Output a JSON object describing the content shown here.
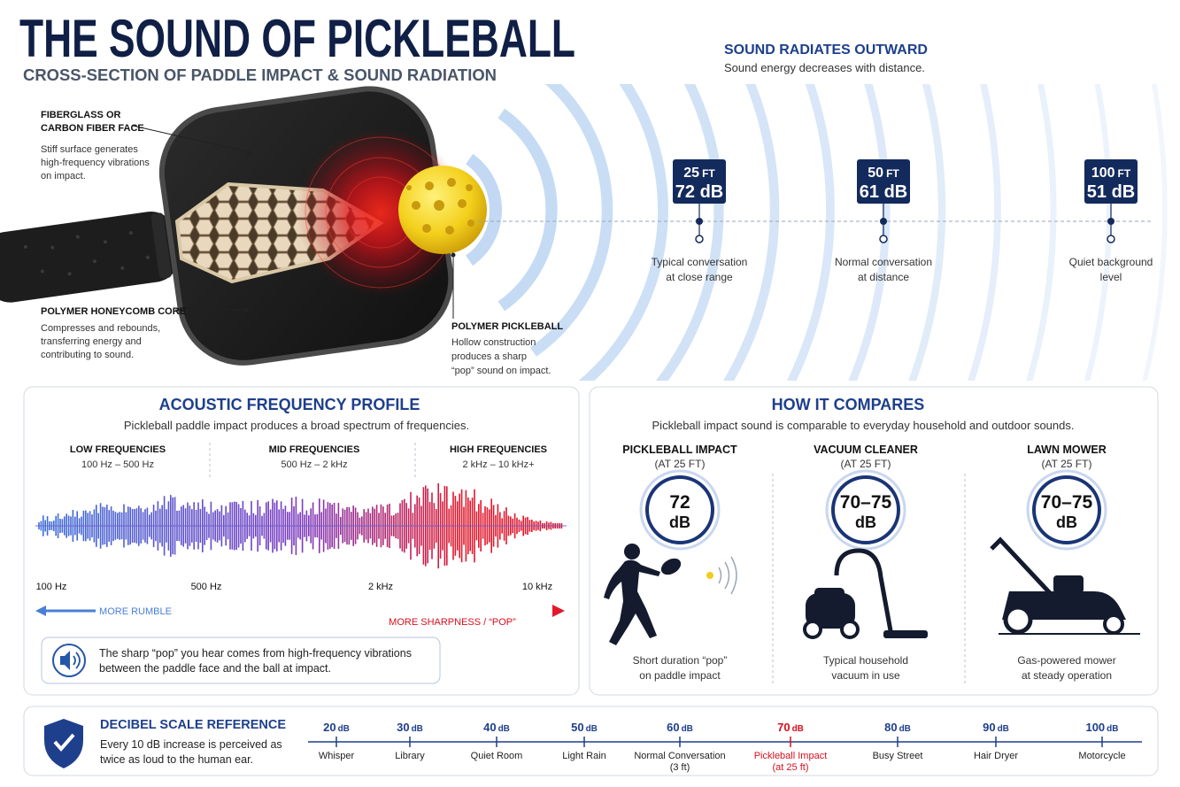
{
  "header": {
    "title": "THE SOUND OF PICKLEBALL",
    "subtitle": "CROSS-SECTION OF PADDLE IMPACT & SOUND RADIATION"
  },
  "radiation": {
    "title": "SOUND RADIATES OUTWARD",
    "subtitle": "Sound energy decreases with distance.",
    "markers": [
      {
        "distance": "25",
        "distance_unit": "FT",
        "level": "72 dB",
        "caption": [
          "Typical conversation",
          "at close range"
        ]
      },
      {
        "distance": "50",
        "distance_unit": "FT",
        "level": "61 dB",
        "caption": [
          "Normal conversation",
          "at distance"
        ]
      },
      {
        "distance": "100",
        "distance_unit": "FT",
        "level": "51 dB",
        "caption": [
          "Quiet background",
          "level"
        ]
      }
    ]
  },
  "paddle": {
    "face": {
      "title": [
        "FIBERGLASS OR",
        "CARBON FIBER FACE"
      ],
      "description": [
        "Stiff surface generates",
        "high-frequency vibrations",
        "on impact."
      ]
    },
    "core": {
      "title": [
        "POLYMER HONEYCOMB CORE"
      ],
      "description": [
        "Compresses and rebounds,",
        "transferring energy and",
        "contributing to sound."
      ]
    },
    "ball": {
      "title": [
        "POLYMER PICKLEBALL"
      ],
      "description": [
        "Hollow construction",
        "produces a sharp",
        "“pop” sound on impact."
      ]
    }
  },
  "frequency": {
    "title": "ACOUSTIC FREQUENCY PROFILE",
    "subtitle": "Pickleball paddle impact produces a broad spectrum of frequencies.",
    "bands": [
      {
        "name": "LOW FREQUENCIES",
        "range": "100 Hz – 500 Hz"
      },
      {
        "name": "MID FREQUENCIES",
        "range": "500 Hz – 2 kHz"
      },
      {
        "name": "HIGH FREQUENCIES",
        "range": "2 kHz – 10 kHz+"
      }
    ],
    "axis_labels": [
      "100 Hz",
      "500 Hz",
      "2 kHz",
      "10 kHz"
    ],
    "rumble": "MORE RUMBLE",
    "sharpness": "MORE SHARPNESS / “POP”",
    "note": [
      "The sharp “pop” you hear comes from high-frequency vibrations",
      "between the paddle face and the ball at impact."
    ]
  },
  "comparison": {
    "title": "HOW IT COMPARES",
    "subtitle": "Pickleball impact sound is comparable to everyday household and outdoor sounds.",
    "items": [
      {
        "name": "PICKLEBALL IMPACT",
        "qualifier": "(AT 25 FT)",
        "level": "72",
        "unit": "dB",
        "caption": [
          "Short duration “pop”",
          "on paddle impact"
        ]
      },
      {
        "name": "VACUUM CLEANER",
        "qualifier": "(AT 25 FT)",
        "level": "70–75",
        "unit": "dB",
        "caption": [
          "Typical household",
          "vacuum in use"
        ]
      },
      {
        "name": "LAWN MOWER",
        "qualifier": "(AT 25 FT)",
        "level": "70–75",
        "unit": "dB",
        "caption": [
          "Gas-powered mower",
          "at steady operation"
        ]
      }
    ]
  },
  "decibel_scale": {
    "title": "DECIBEL SCALE REFERENCE",
    "description": [
      "Every 10 dB increase is perceived as",
      "twice as loud to the human ear."
    ],
    "levels": [
      {
        "level": "20",
        "unit": "dB",
        "label": [
          "Whisper"
        ]
      },
      {
        "level": "30",
        "unit": "dB",
        "label": [
          "Library"
        ]
      },
      {
        "level": "40",
        "unit": "dB",
        "label": [
          "Quiet Room"
        ]
      },
      {
        "level": "50",
        "unit": "dB",
        "label": [
          "Light Rain"
        ]
      },
      {
        "level": "60",
        "unit": "dB",
        "label": [
          "Normal Conversation",
          "(3 ft)"
        ]
      },
      {
        "level": "70",
        "unit": "dB",
        "label": [
          "Pickleball Impact",
          "(at 25 ft)"
        ],
        "highlight": true
      },
      {
        "level": "80",
        "unit": "dB",
        "label": [
          "Busy Street"
        ]
      },
      {
        "level": "90",
        "unit": "dB",
        "label": [
          "Hair Dryer"
        ]
      },
      {
        "level": "100",
        "unit": "dB",
        "label": [
          "Motorcycle"
        ]
      }
    ]
  }
}
